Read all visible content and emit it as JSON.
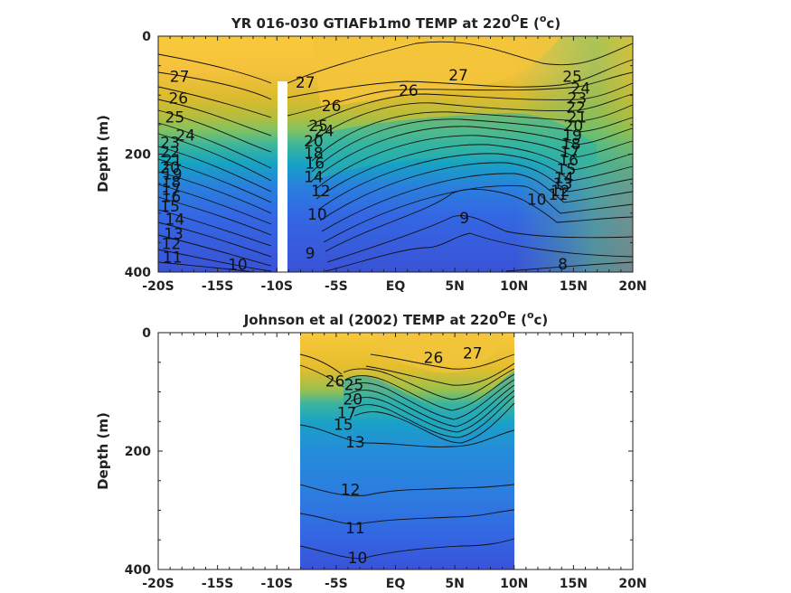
{
  "chart_data": [
    {
      "type": "heatmap",
      "title": "YR 016-030 GTIAFb1m0 TEMP at 220°E (°c)",
      "title_parts": {
        "pre": "YR 016-030 GTIAFb1m0 TEMP at 220",
        "deg1": "O",
        "mid": "E (",
        "deg2": "o",
        "post": "c)"
      },
      "ylabel": "Depth (m)",
      "xlim": [
        -20,
        20
      ],
      "ylim": [
        400,
        0
      ],
      "xticklabels": [
        "-20S",
        "-15S",
        "-10S",
        "-5S",
        "EQ",
        "5N",
        "10N",
        "15N",
        "20N"
      ],
      "xtickvalues": [
        -20,
        -15,
        -10,
        -5,
        0,
        5,
        10,
        15,
        20
      ],
      "yticklabels": [
        "0",
        "200",
        "400"
      ],
      "ytickvalues": [
        0,
        200,
        400
      ],
      "colormap": "parula",
      "color_range": [
        8,
        28
      ],
      "masked_column": {
        "lat_range": [
          -10.2,
          -9.4
        ],
        "depth_range": [
          78,
          400
        ]
      },
      "contour_levels": [
        8,
        9,
        10,
        11,
        12,
        13,
        14,
        15,
        16,
        17,
        18,
        19,
        20,
        21,
        22,
        23,
        24,
        25,
        26,
        27
      ],
      "contour_labels": [
        {
          "text": "27",
          "lat": -18.2,
          "depth": 68
        },
        {
          "text": "26",
          "lat": -18.3,
          "depth": 105
        },
        {
          "text": "25",
          "lat": -18.6,
          "depth": 137
        },
        {
          "text": "24",
          "lat": -17.7,
          "depth": 168
        },
        {
          "text": "23",
          "lat": -19.0,
          "depth": 180
        },
        {
          "text": "22",
          "lat": -19.0,
          "depth": 196
        },
        {
          "text": "21",
          "lat": -18.8,
          "depth": 210
        },
        {
          "text": "20",
          "lat": -19.0,
          "depth": 222
        },
        {
          "text": "19",
          "lat": -18.8,
          "depth": 234
        },
        {
          "text": "18",
          "lat": -18.9,
          "depth": 247
        },
        {
          "text": "17",
          "lat": -18.9,
          "depth": 260
        },
        {
          "text": "16",
          "lat": -18.9,
          "depth": 272
        },
        {
          "text": "15",
          "lat": -19.0,
          "depth": 288
        },
        {
          "text": "14",
          "lat": -18.6,
          "depth": 310
        },
        {
          "text": "13",
          "lat": -18.7,
          "depth": 335
        },
        {
          "text": "12",
          "lat": -18.9,
          "depth": 352
        },
        {
          "text": "11",
          "lat": -18.8,
          "depth": 375
        },
        {
          "text": "10",
          "lat": -13.3,
          "depth": 387
        },
        {
          "text": "27",
          "lat": -7.6,
          "depth": 78
        },
        {
          "text": "26",
          "lat": -5.4,
          "depth": 118
        },
        {
          "text": "25",
          "lat": -6.5,
          "depth": 152
        },
        {
          "text": "24",
          "lat": -6.0,
          "depth": 160
        },
        {
          "text": "20",
          "lat": -6.9,
          "depth": 178
        },
        {
          "text": "18",
          "lat": -6.9,
          "depth": 198
        },
        {
          "text": "16",
          "lat": -6.8,
          "depth": 215
        },
        {
          "text": "14",
          "lat": -6.9,
          "depth": 238
        },
        {
          "text": "12",
          "lat": -6.3,
          "depth": 262
        },
        {
          "text": "10",
          "lat": -6.6,
          "depth": 302
        },
        {
          "text": "9",
          "lat": -7.2,
          "depth": 368
        },
        {
          "text": "26",
          "lat": 1.1,
          "depth": 92
        },
        {
          "text": "27",
          "lat": 5.3,
          "depth": 66
        },
        {
          "text": "9",
          "lat": 5.8,
          "depth": 308
        },
        {
          "text": "8",
          "lat": 14.1,
          "depth": 386
        },
        {
          "text": "25",
          "lat": 14.9,
          "depth": 68
        },
        {
          "text": "24",
          "lat": 15.6,
          "depth": 88
        },
        {
          "text": "23",
          "lat": 15.3,
          "depth": 105
        },
        {
          "text": "22",
          "lat": 15.2,
          "depth": 120
        },
        {
          "text": "21",
          "lat": 15.3,
          "depth": 137
        },
        {
          "text": "20",
          "lat": 15.0,
          "depth": 152
        },
        {
          "text": "19",
          "lat": 14.9,
          "depth": 168
        },
        {
          "text": "18",
          "lat": 14.8,
          "depth": 182
        },
        {
          "text": "17",
          "lat": 14.7,
          "depth": 196
        },
        {
          "text": "16",
          "lat": 14.6,
          "depth": 210
        },
        {
          "text": "15",
          "lat": 14.4,
          "depth": 225
        },
        {
          "text": "14",
          "lat": 14.2,
          "depth": 240
        },
        {
          "text": "13",
          "lat": 14.1,
          "depth": 250
        },
        {
          "text": "12",
          "lat": 13.9,
          "depth": 262
        },
        {
          "text": "11",
          "lat": 13.7,
          "depth": 268
        },
        {
          "text": "10",
          "lat": 11.9,
          "depth": 277
        }
      ]
    },
    {
      "type": "heatmap",
      "title": "Johnson et al (2002) TEMP at 220°E (°c)",
      "title_parts": {
        "pre": "Johnson et al (2002) TEMP at 220",
        "deg1": "O",
        "mid": "E (",
        "deg2": "o",
        "post": "c)"
      },
      "ylabel": "Depth (m)",
      "xlim": [
        -20,
        20
      ],
      "ylim": [
        400,
        0
      ],
      "xticklabels": [
        "-20S",
        "-15S",
        "-10S",
        "-5S",
        "EQ",
        "5N",
        "10N",
        "15N",
        "20N"
      ],
      "xtickvalues": [
        -20,
        -15,
        -10,
        -5,
        0,
        5,
        10,
        15,
        20
      ],
      "yticklabels": [
        "0",
        "200",
        "400"
      ],
      "ytickvalues": [
        0,
        200,
        400
      ],
      "colormap": "parula",
      "color_range": [
        8,
        28
      ],
      "data_lat_range": [
        -8,
        10
      ],
      "contour_levels": [
        10,
        11,
        12,
        13,
        14,
        15,
        16,
        17,
        18,
        19,
        20,
        21,
        22,
        23,
        24,
        25,
        26,
        27
      ],
      "contour_labels": [
        {
          "text": "26",
          "lat": -5.1,
          "depth": 82
        },
        {
          "text": "25",
          "lat": -3.5,
          "depth": 88
        },
        {
          "text": "20",
          "lat": -3.6,
          "depth": 112
        },
        {
          "text": "17",
          "lat": -4.1,
          "depth": 135
        },
        {
          "text": "15",
          "lat": -4.4,
          "depth": 155
        },
        {
          "text": "13",
          "lat": -3.4,
          "depth": 185
        },
        {
          "text": "26",
          "lat": 3.2,
          "depth": 42
        },
        {
          "text": "27",
          "lat": 6.5,
          "depth": 34
        },
        {
          "text": "12",
          "lat": -3.8,
          "depth": 265
        },
        {
          "text": "11",
          "lat": -3.4,
          "depth": 330
        },
        {
          "text": "10",
          "lat": -3.2,
          "depth": 380
        }
      ]
    }
  ]
}
